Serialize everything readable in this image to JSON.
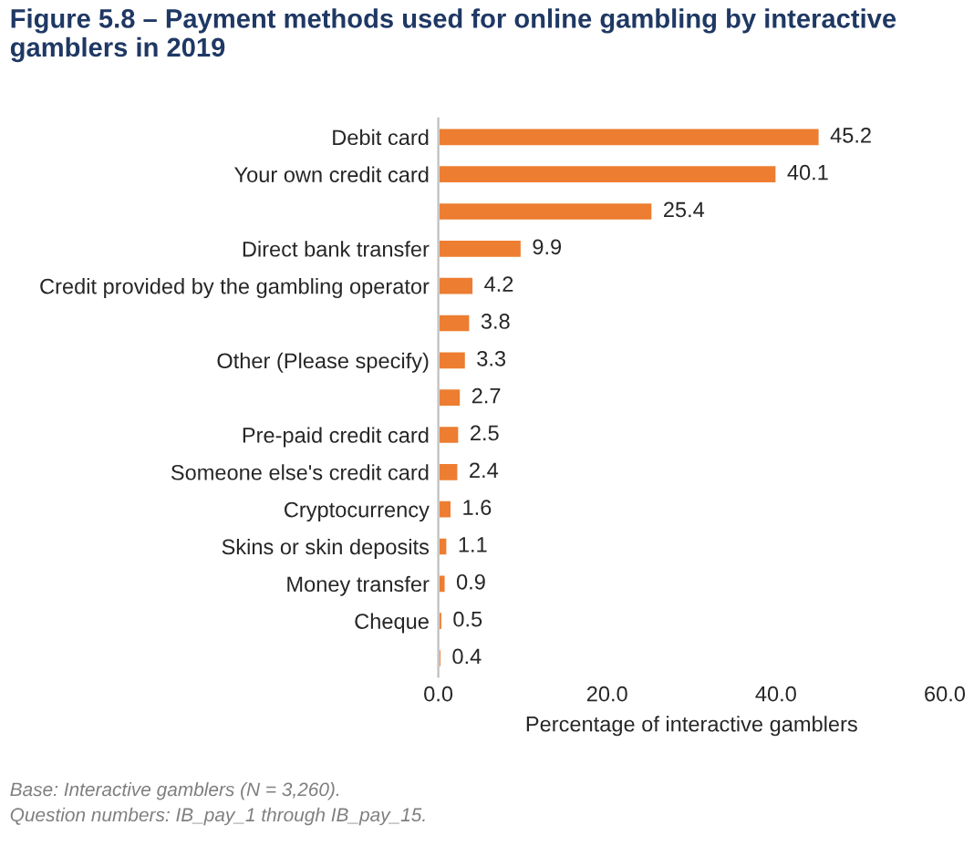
{
  "chart_data": {
    "type": "bar",
    "orientation": "horizontal",
    "title": "Figure 5.8 – Payment methods used for online gambling by interactive gamblers in 2019",
    "xlabel": "Percentage of interactive gamblers",
    "categories": [
      "Debit card",
      "Your own credit card",
      null,
      "Direct bank transfer",
      "Credit provided by the gambling operator",
      null,
      "Other (Please specify)",
      null,
      "Pre-paid credit card",
      "Someone else's credit card",
      "Cryptocurrency",
      "Skins or skin deposits",
      "Money transfer",
      "Cheque",
      null
    ],
    "values": [
      45.2,
      40.1,
      25.4,
      9.9,
      4.2,
      3.8,
      3.3,
      2.7,
      2.5,
      2.4,
      1.6,
      1.1,
      0.9,
      0.5,
      0.4
    ],
    "color": "#ed7d31",
    "data_labels": true,
    "xlim": [
      0,
      60
    ],
    "xticks": [
      {
        "value": 0,
        "label": "0.0"
      },
      {
        "value": 20,
        "label": "20.0"
      },
      {
        "value": 40,
        "label": "40.0"
      },
      {
        "value": 60,
        "label": "60.0"
      }
    ],
    "grid": false,
    "legend": false,
    "annotations": [
      "Base: Interactive gamblers (N = 3,260).",
      "Question numbers: IB_pay_1 through IB_pay_15."
    ]
  }
}
